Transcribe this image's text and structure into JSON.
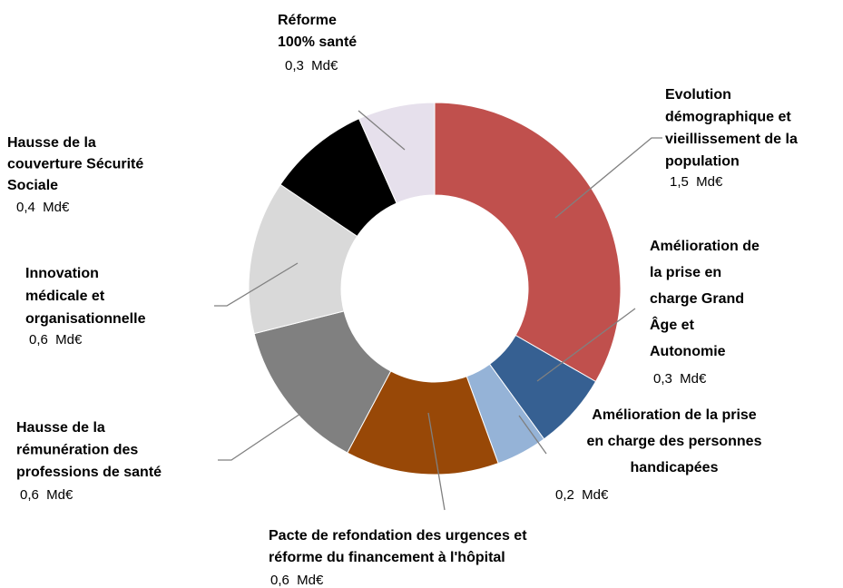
{
  "chart_data": {
    "type": "donut",
    "categories": [
      [
        "Evolution",
        "démographique et",
        "vieillissement de la",
        "population"
      ],
      [
        "Amélioration de",
        "la prise en",
        "charge Grand",
        "Âge et",
        "Autonomie"
      ],
      [
        "Amélioration de la prise",
        "en charge des personnes",
        "handicapées"
      ],
      [
        "Pacte de refondation des urgences et",
        "réforme du financement à l'hôpital"
      ],
      [
        "Hausse de la",
        "rémunération des",
        "professions de santé"
      ],
      [
        "Innovation",
        "médicale et",
        "organisationnelle"
      ],
      [
        "Hausse de la",
        "couverture Sécurité",
        "Sociale"
      ],
      [
        "Réforme",
        "100% santé"
      ]
    ],
    "values": [
      1.5,
      0.3,
      0.2,
      0.6,
      0.6,
      0.6,
      0.4,
      0.3
    ],
    "value_labels": [
      "1,5  Md€",
      "0,3  Md€",
      "0,2  Md€",
      "0,6  Md€",
      "0,6  Md€",
      "0,6  Md€",
      "0,4  Md€",
      "0,3  Md€"
    ],
    "colors": [
      "#c0504d",
      "#366092",
      "#95b3d7",
      "#984807",
      "#808080",
      "#d9d9d9",
      "#000000",
      "#e6e0ec"
    ]
  }
}
